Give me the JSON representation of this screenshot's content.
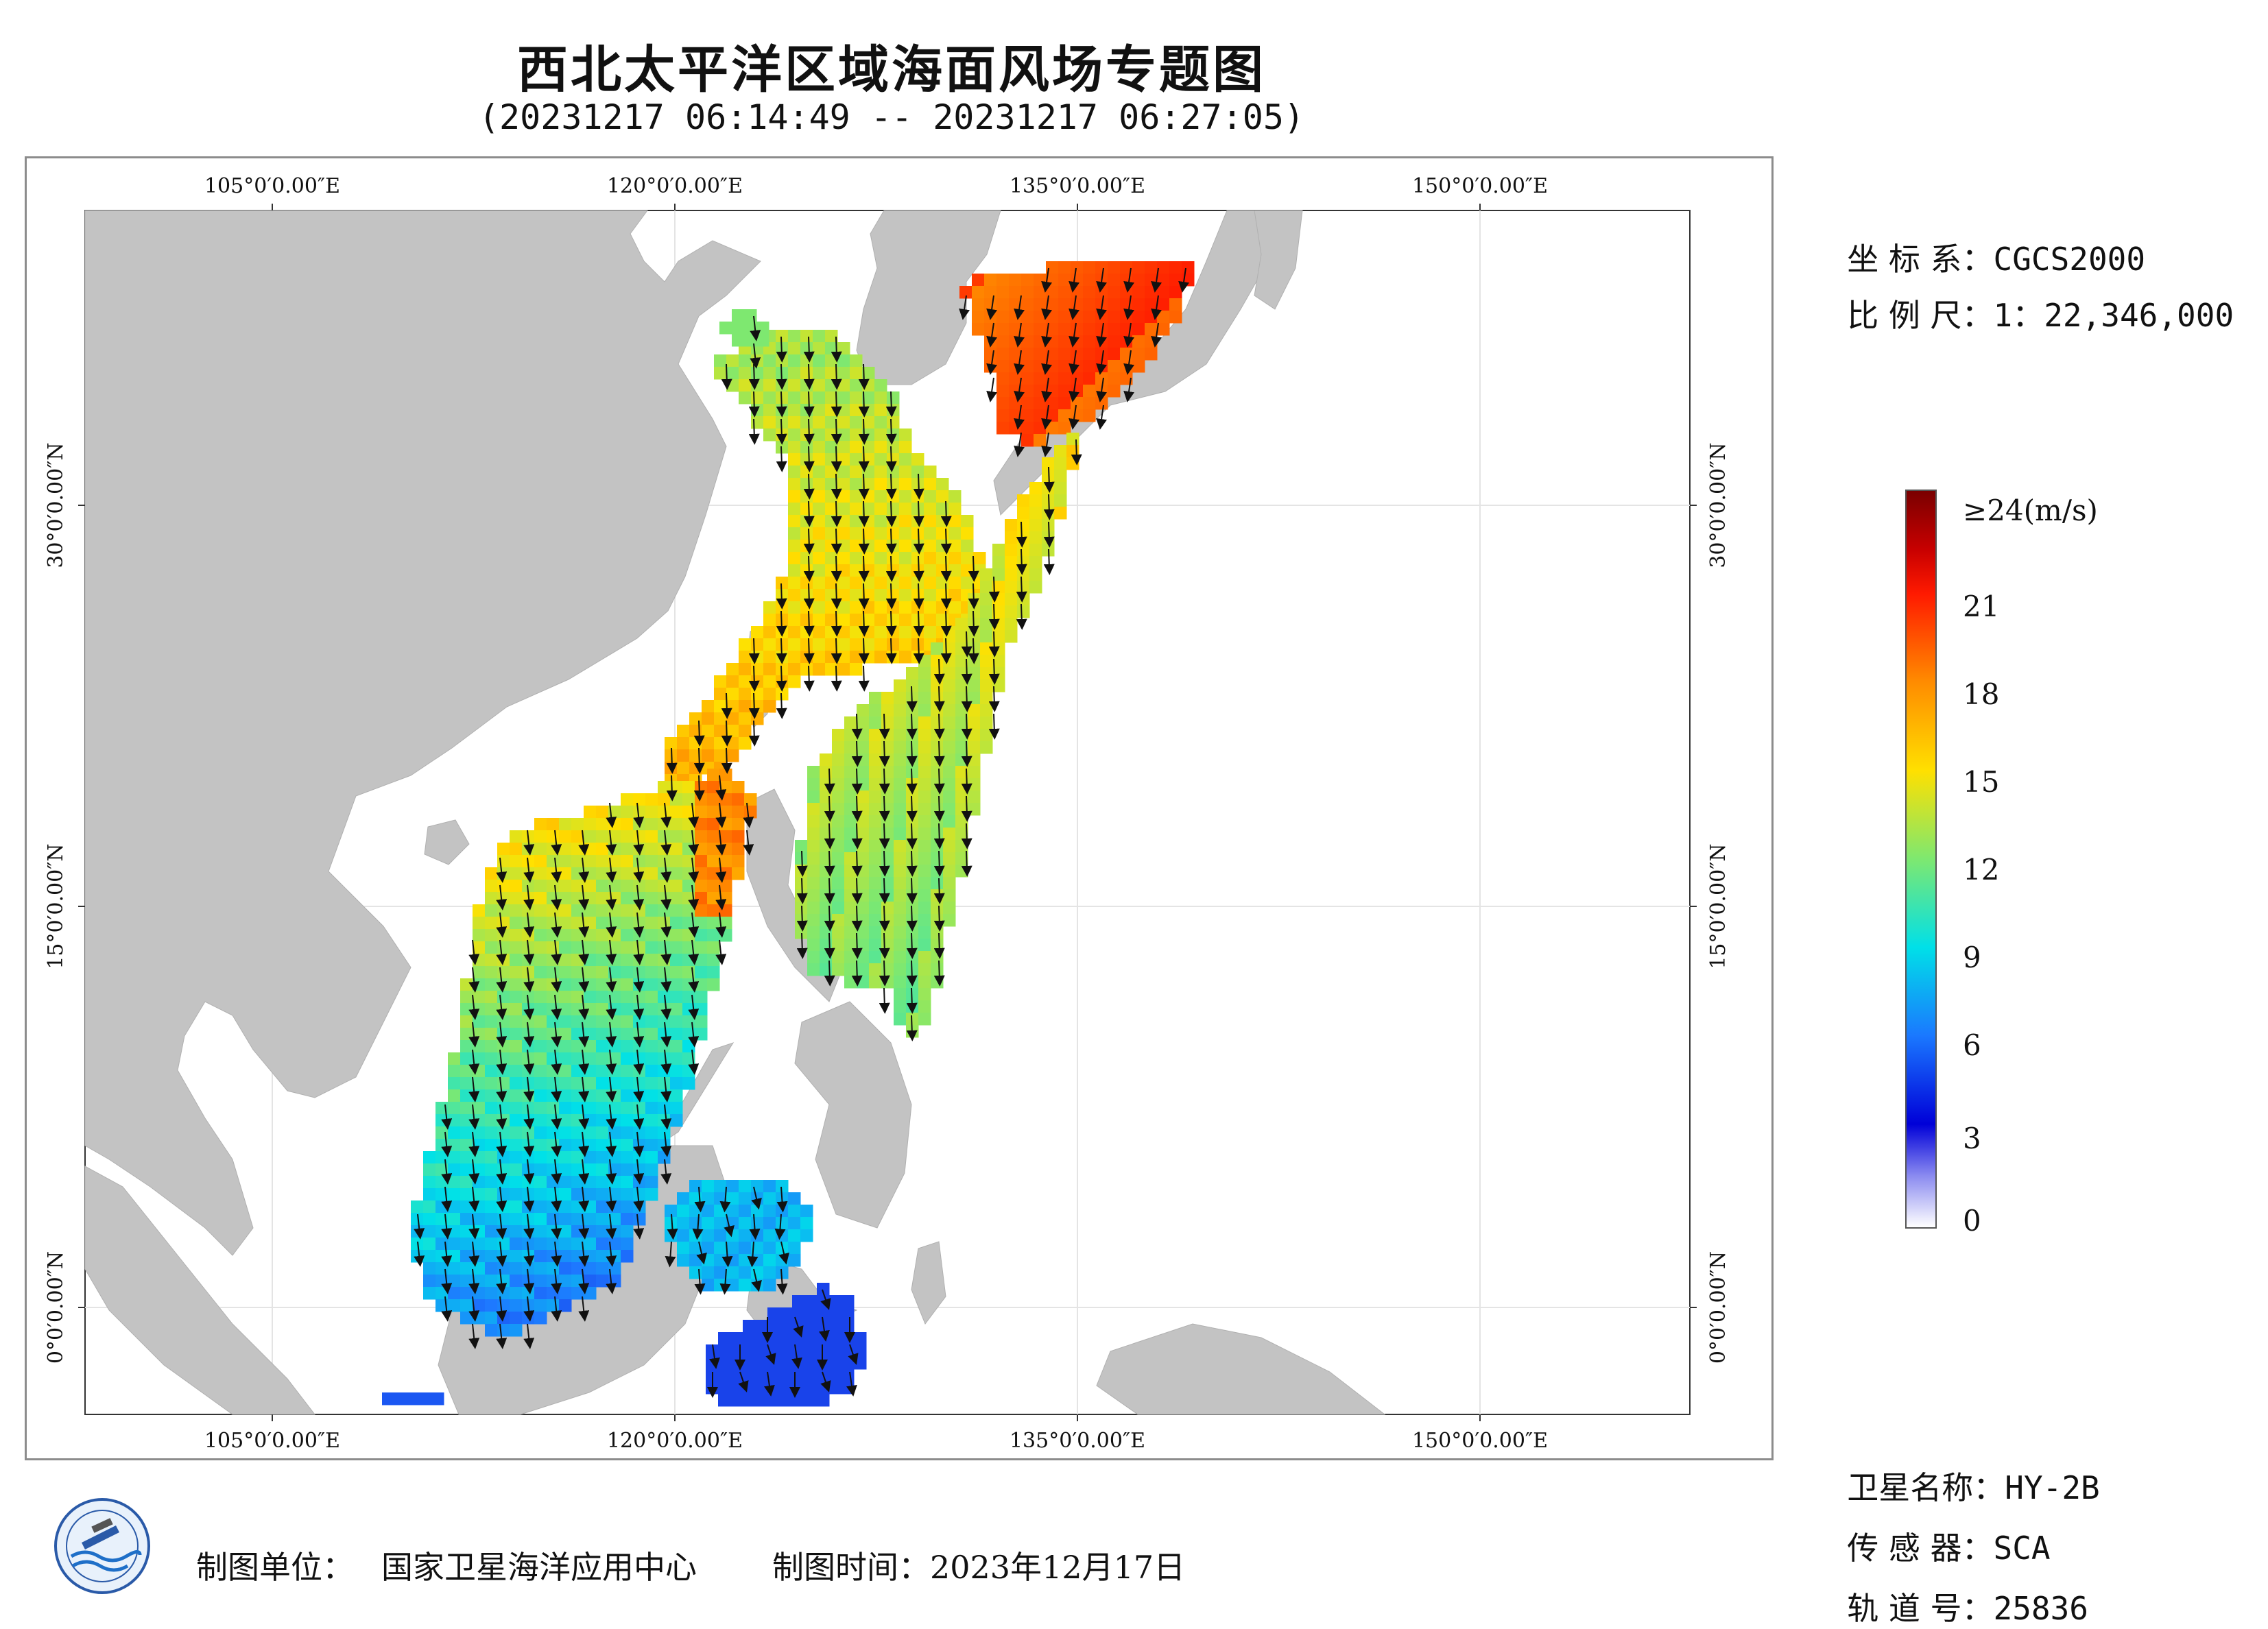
{
  "title": "西北太平洋区域海面风场专题图",
  "subtitle": "(20231217 06:14:49 -- 20231217 06:27:05)",
  "map": {
    "lon_ticks": [
      {
        "lon": 105,
        "label": "105°0′0.00″E"
      },
      {
        "lon": 120,
        "label": "120°0′0.00″E"
      },
      {
        "lon": 135,
        "label": "135°0′0.00″E"
      },
      {
        "lon": 150,
        "label": "150°0′0.00″E"
      }
    ],
    "lat_ticks": [
      {
        "lat": 30,
        "label": "30°0′0.00″N"
      },
      {
        "lat": 15,
        "label": "15°0′0.00″N"
      },
      {
        "lat": 0,
        "label": "0°0′0.00″N"
      }
    ],
    "land_color": "#c3c3c3",
    "grid_color": "#e4e4e4"
  },
  "info": {
    "crs_label": "坐 标 系：",
    "crs_value": "CGCS2000",
    "scale_label": "比 例 尺：",
    "scale_value": "1：22,346,000",
    "satellite_label": "卫星名称：",
    "satellite_value": "HY-2B",
    "sensor_label": "传 感 器：",
    "sensor_value": "SCA",
    "orbit_label": "轨 道 号：",
    "orbit_value": "25836"
  },
  "legend": {
    "labels": [
      "≥24(m/s)",
      "21",
      "18",
      "15",
      "12",
      "9",
      "6",
      "3",
      "0"
    ],
    "colors": [
      "#7a0000",
      "#ff1a00",
      "#ff8c00",
      "#ffe000",
      "#7ee870",
      "#00e0e8",
      "#1a78ff",
      "#0000d8",
      "#ffffff"
    ]
  },
  "footer": {
    "unit_label": "制图单位：",
    "unit_value": "国家卫星海洋应用中心",
    "time_label": "制图时间：",
    "time_value": "2023年12月17日"
  }
}
